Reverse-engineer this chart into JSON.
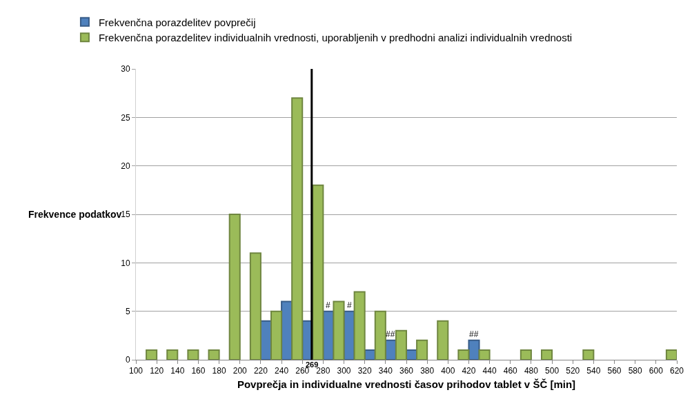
{
  "chart_data": {
    "type": "bar",
    "xlabel": "Povprečja in individualne vrednosti časov prihodov tablet v ŠČ [min]",
    "ylabel": "Frekvence podatkov",
    "series": [
      {
        "name": "Frekvenčna porazdelitev povprečij",
        "color": "#4f81bd",
        "x": [
          225,
          245,
          265,
          285,
          305,
          325,
          345,
          365,
          425
        ],
        "values": [
          4,
          6,
          4,
          5,
          5,
          1,
          2,
          1,
          2
        ]
      },
      {
        "name": "Frekvenčna porazdelitev individualnih vrednosti, uporabljenih v predhodni analizi individualnih vrednosti",
        "color": "#9bbb59",
        "x": [
          115,
          135,
          155,
          175,
          195,
          215,
          235,
          255,
          275,
          295,
          315,
          335,
          355,
          375,
          395,
          415,
          435,
          475,
          495,
          535,
          615
        ],
        "values": [
          1,
          1,
          1,
          1,
          15,
          11,
          5,
          27,
          18,
          6,
          7,
          5,
          3,
          2,
          4,
          1,
          1,
          1,
          1,
          1,
          1
        ]
      }
    ],
    "xlim": [
      100,
      620
    ],
    "xticks": [
      100,
      120,
      140,
      160,
      180,
      200,
      220,
      240,
      260,
      280,
      300,
      320,
      340,
      360,
      380,
      400,
      420,
      440,
      460,
      480,
      500,
      520,
      540,
      560,
      580,
      600,
      620
    ],
    "ylim": [
      0,
      30
    ],
    "yticks": [
      0,
      5,
      10,
      15,
      20,
      25,
      30
    ],
    "ref_lines": [
      {
        "axis": "x",
        "value": 269,
        "label": "269",
        "color": "#000000"
      }
    ],
    "annotations": [
      {
        "text": "#",
        "x": 285,
        "y": 5
      },
      {
        "text": "#",
        "x": 305,
        "y": 5
      },
      {
        "text": "##",
        "x": 345,
        "y": 2
      },
      {
        "text": "##",
        "x": 425,
        "y": 2
      }
    ],
    "grid": "y",
    "legend": "top left"
  }
}
